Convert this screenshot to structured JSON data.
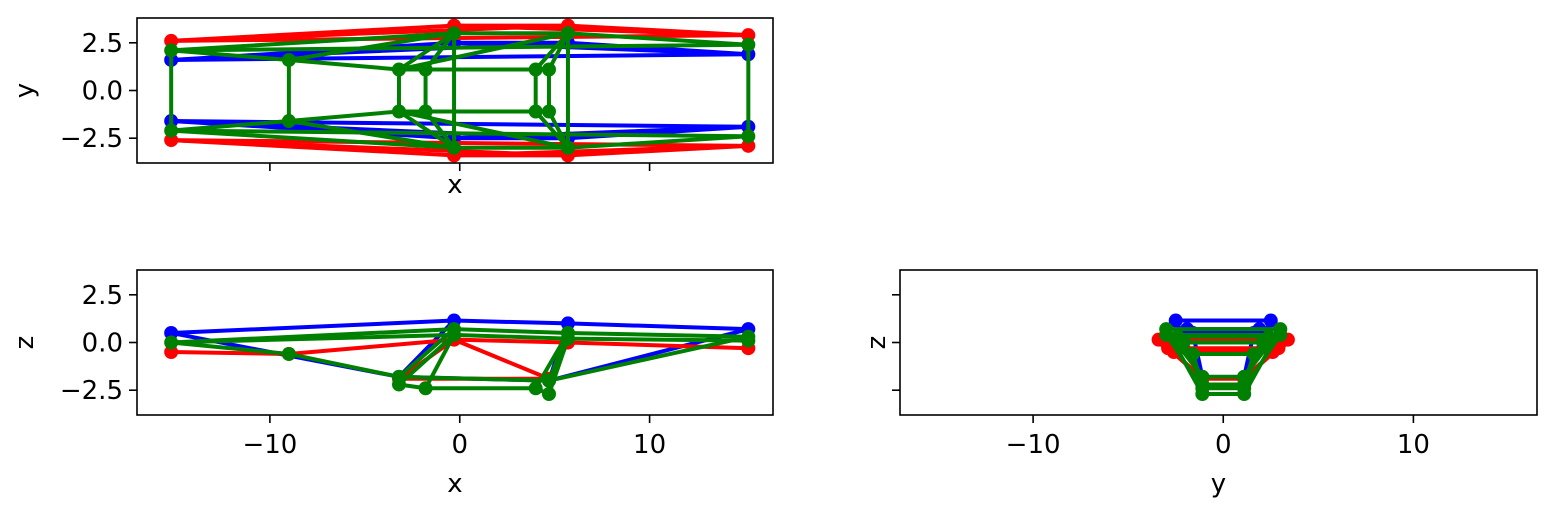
{
  "figure": {
    "subplot_count": 3
  },
  "colors": {
    "series_a": "#0000ff",
    "series_b": "#ff0000",
    "series_c": "#008000"
  },
  "chart_data": [
    {
      "type": "line",
      "id": "xy-view",
      "xlabel": "x",
      "ylabel": "y",
      "xlim": [
        -17,
        16.5
      ],
      "ylim": [
        -3.8,
        3.8
      ],
      "xticks": [
        -10,
        0,
        10
      ],
      "xtick_labels_visible": false,
      "yticks": [
        -2.5,
        0.0,
        2.5
      ],
      "ytick_labels": [
        "−2.5",
        "0.0",
        "2.5"
      ],
      "grid": false,
      "legend": "none",
      "series": [
        {
          "color": "#0000ff",
          "points": [
            [
              -15.2,
              1.6
            ],
            [
              -15.2,
              -1.6
            ],
            [
              -0.3,
              2.5
            ],
            [
              -0.3,
              -2.5
            ],
            [
              5.7,
              2.5
            ],
            [
              5.7,
              -2.5
            ],
            [
              15.2,
              1.9
            ],
            [
              15.2,
              -1.9
            ]
          ],
          "edges": [
            [
              0,
              2
            ],
            [
              0,
              4
            ],
            [
              2,
              4
            ],
            [
              2,
              6
            ],
            [
              4,
              6
            ],
            [
              1,
              3
            ],
            [
              1,
              5
            ],
            [
              3,
              5
            ],
            [
              3,
              7
            ],
            [
              5,
              7
            ],
            [
              0,
              6
            ],
            [
              1,
              7
            ]
          ]
        },
        {
          "color": "#ff0000",
          "points": [
            [
              -15.2,
              2.6
            ],
            [
              -15.2,
              -2.6
            ],
            [
              -0.3,
              3.4
            ],
            [
              -0.3,
              -3.4
            ],
            [
              5.7,
              3.4
            ],
            [
              5.7,
              -3.4
            ],
            [
              15.2,
              2.9
            ],
            [
              15.2,
              -2.9
            ]
          ],
          "edges": [
            [
              0,
              2
            ],
            [
              0,
              4
            ],
            [
              2,
              4
            ],
            [
              2,
              6
            ],
            [
              4,
              6
            ],
            [
              1,
              3
            ],
            [
              1,
              5
            ],
            [
              3,
              5
            ],
            [
              3,
              7
            ],
            [
              5,
              7
            ],
            [
              0,
              6
            ],
            [
              1,
              7
            ]
          ]
        },
        {
          "color": "#008000",
          "points": [
            [
              -15.2,
              2.1
            ],
            [
              -15.2,
              -2.1
            ],
            [
              -9.0,
              1.6
            ],
            [
              -9.0,
              -1.6
            ],
            [
              -3.2,
              1.1
            ],
            [
              -3.2,
              -1.1
            ],
            [
              -1.8,
              1.1
            ],
            [
              -1.8,
              -1.1
            ],
            [
              -0.3,
              3.0
            ],
            [
              -0.3,
              -3.0
            ],
            [
              4.0,
              1.1
            ],
            [
              4.0,
              -1.1
            ],
            [
              4.7,
              1.1
            ],
            [
              4.7,
              -1.1
            ],
            [
              5.7,
              3.0
            ],
            [
              5.7,
              -3.0
            ],
            [
              15.2,
              2.4
            ],
            [
              15.2,
              -2.4
            ]
          ],
          "edges": [
            [
              0,
              1
            ],
            [
              0,
              2
            ],
            [
              1,
              3
            ],
            [
              2,
              3
            ],
            [
              2,
              4
            ],
            [
              3,
              5
            ],
            [
              4,
              5
            ],
            [
              6,
              7
            ],
            [
              4,
              6
            ],
            [
              5,
              7
            ],
            [
              6,
              10
            ],
            [
              7,
              11
            ],
            [
              10,
              11
            ],
            [
              12,
              13
            ],
            [
              10,
              12
            ],
            [
              11,
              13
            ],
            [
              8,
              9
            ],
            [
              14,
              15
            ],
            [
              16,
              17
            ],
            [
              0,
              8
            ],
            [
              1,
              9
            ],
            [
              8,
              14
            ],
            [
              9,
              15
            ],
            [
              14,
              16
            ],
            [
              15,
              17
            ],
            [
              0,
              16
            ],
            [
              1,
              17
            ],
            [
              4,
              8
            ],
            [
              5,
              9
            ],
            [
              6,
              8
            ],
            [
              7,
              9
            ],
            [
              12,
              14
            ],
            [
              13,
              15
            ],
            [
              10,
              14
            ],
            [
              11,
              15
            ],
            [
              2,
              8
            ],
            [
              3,
              9
            ],
            [
              4,
              14
            ],
            [
              5,
              15
            ]
          ]
        }
      ]
    },
    {
      "type": "line",
      "id": "xz-view",
      "xlabel": "x",
      "ylabel": "z",
      "xlim": [
        -17,
        16.5
      ],
      "ylim": [
        -3.8,
        3.8
      ],
      "xticks": [
        -10,
        0,
        10
      ],
      "xtick_labels": [
        "−10",
        "0",
        "10"
      ],
      "yticks": [
        -2.5,
        0.0,
        2.5
      ],
      "ytick_labels": [
        "−2.5",
        "0.0",
        "2.5"
      ],
      "grid": false,
      "legend": "none",
      "series": [
        {
          "color": "#0000ff",
          "points": [
            [
              -15.2,
              0.5
            ],
            [
              -0.3,
              1.15
            ],
            [
              5.7,
              1.0
            ],
            [
              15.2,
              0.7
            ],
            [
              -3.2,
              -1.8
            ],
            [
              4.7,
              -2.0
            ]
          ],
          "edges": [
            [
              0,
              1
            ],
            [
              1,
              2
            ],
            [
              2,
              3
            ],
            [
              4,
              1
            ],
            [
              4,
              5
            ],
            [
              5,
              2
            ],
            [
              5,
              3
            ],
            [
              0,
              4
            ]
          ]
        },
        {
          "color": "#ff0000",
          "points": [
            [
              -15.2,
              -0.5
            ],
            [
              -0.3,
              0.15
            ],
            [
              5.7,
              0.0
            ],
            [
              15.2,
              -0.3
            ],
            [
              -9.0,
              -0.6
            ],
            [
              -3.2,
              -1.9
            ],
            [
              4.7,
              -1.9
            ]
          ],
          "edges": [
            [
              0,
              4
            ],
            [
              4,
              1
            ],
            [
              1,
              2
            ],
            [
              2,
              3
            ],
            [
              5,
              1
            ],
            [
              5,
              6
            ],
            [
              6,
              2
            ],
            [
              1,
              6
            ]
          ]
        },
        {
          "color": "#008000",
          "points": [
            [
              -15.2,
              0.0
            ],
            [
              -9.0,
              -0.6
            ],
            [
              -3.2,
              -1.8
            ],
            [
              -3.2,
              -2.2
            ],
            [
              -1.8,
              -2.4
            ],
            [
              -0.3,
              0.7
            ],
            [
              -0.3,
              0.4
            ],
            [
              4.0,
              -2.4
            ],
            [
              4.7,
              -2.0
            ],
            [
              4.7,
              -2.7
            ],
            [
              5.7,
              0.5
            ],
            [
              5.7,
              0.2
            ],
            [
              15.2,
              0.3
            ],
            [
              15.2,
              0.1
            ]
          ],
          "edges": [
            [
              0,
              1
            ],
            [
              1,
              2
            ],
            [
              2,
              3
            ],
            [
              3,
              4
            ],
            [
              4,
              7
            ],
            [
              7,
              9
            ],
            [
              9,
              8
            ],
            [
              2,
              8
            ],
            [
              0,
              5
            ],
            [
              5,
              10
            ],
            [
              10,
              12
            ],
            [
              0,
              6
            ],
            [
              6,
              11
            ],
            [
              11,
              13
            ],
            [
              2,
              5
            ],
            [
              3,
              6
            ],
            [
              8,
              10
            ],
            [
              9,
              11
            ],
            [
              7,
              10
            ],
            [
              4,
              6
            ],
            [
              8,
              12
            ]
          ]
        }
      ]
    },
    {
      "type": "line",
      "id": "yz-view",
      "xlabel": "y",
      "ylabel": "z",
      "xlim": [
        -17,
        16.5
      ],
      "ylim": [
        -3.8,
        3.8
      ],
      "xticks": [
        -10,
        0,
        10
      ],
      "xtick_labels": [
        "−10",
        "0",
        "10"
      ],
      "yticks": [
        -2.5,
        0.0,
        2.5
      ],
      "ytick_labels_visible": false,
      "grid": false,
      "legend": "none",
      "series": [
        {
          "color": "#0000ff",
          "points": [
            [
              -2.5,
              1.15
            ],
            [
              2.5,
              1.15
            ],
            [
              -1.6,
              0.5
            ],
            [
              1.6,
              0.5
            ],
            [
              -1.9,
              0.7
            ],
            [
              1.9,
              0.7
            ],
            [
              -1.1,
              -1.8
            ],
            [
              1.1,
              -1.8
            ]
          ],
          "edges": [
            [
              0,
              1
            ],
            [
              2,
              3
            ],
            [
              4,
              5
            ],
            [
              6,
              7
            ],
            [
              0,
              6
            ],
            [
              1,
              7
            ],
            [
              2,
              6
            ],
            [
              3,
              7
            ]
          ]
        },
        {
          "color": "#ff0000",
          "points": [
            [
              -3.4,
              0.15
            ],
            [
              3.4,
              0.15
            ],
            [
              -2.6,
              -0.5
            ],
            [
              2.6,
              -0.5
            ],
            [
              -2.9,
              -0.3
            ],
            [
              2.9,
              -0.3
            ],
            [
              -3.0,
              0.0
            ],
            [
              3.0,
              0.0
            ],
            [
              -1.1,
              -1.9
            ],
            [
              1.1,
              -1.9
            ]
          ],
          "edges": [
            [
              0,
              1
            ],
            [
              2,
              3
            ],
            [
              4,
              5
            ],
            [
              6,
              7
            ],
            [
              8,
              9
            ],
            [
              0,
              8
            ],
            [
              1,
              9
            ],
            [
              2,
              8
            ],
            [
              3,
              9
            ]
          ]
        },
        {
          "color": "#008000",
          "points": [
            [
              -3.0,
              0.7
            ],
            [
              3.0,
              0.7
            ],
            [
              -2.1,
              0.0
            ],
            [
              2.1,
              0.0
            ],
            [
              -2.4,
              0.3
            ],
            [
              2.4,
              0.3
            ],
            [
              -1.6,
              -0.6
            ],
            [
              1.6,
              -0.6
            ],
            [
              -1.1,
              -1.8
            ],
            [
              1.1,
              -1.8
            ],
            [
              -1.1,
              -2.2
            ],
            [
              1.1,
              -2.2
            ],
            [
              -1.1,
              -2.4
            ],
            [
              1.1,
              -2.4
            ],
            [
              -1.1,
              -2.7
            ],
            [
              1.1,
              -2.7
            ],
            [
              -3.0,
              0.4
            ],
            [
              3.0,
              0.4
            ]
          ],
          "edges": [
            [
              0,
              1
            ],
            [
              16,
              17
            ],
            [
              2,
              3
            ],
            [
              4,
              5
            ],
            [
              6,
              7
            ],
            [
              8,
              9
            ],
            [
              10,
              11
            ],
            [
              12,
              13
            ],
            [
              14,
              15
            ],
            [
              0,
              8
            ],
            [
              1,
              9
            ],
            [
              0,
              14
            ],
            [
              1,
              15
            ],
            [
              2,
              10
            ],
            [
              3,
              11
            ],
            [
              16,
              12
            ],
            [
              17,
              13
            ],
            [
              4,
              8
            ],
            [
              5,
              9
            ],
            [
              6,
              10
            ],
            [
              7,
              11
            ]
          ]
        }
      ]
    }
  ]
}
